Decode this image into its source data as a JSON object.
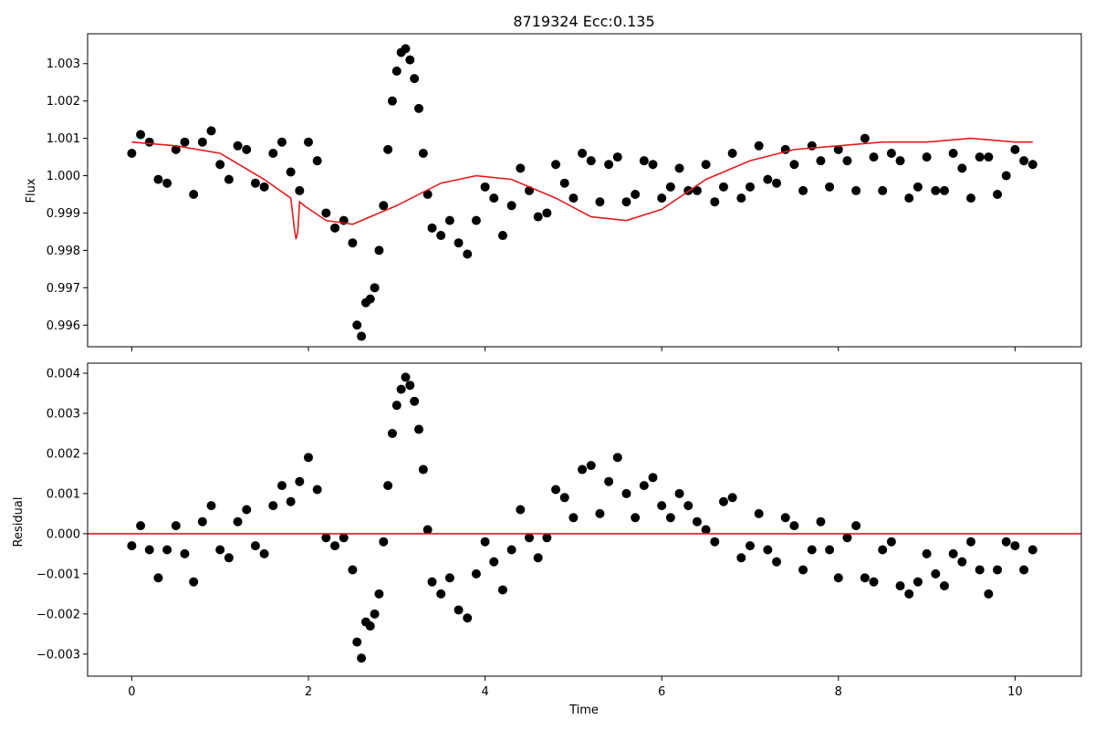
{
  "title": "8719324    Ecc:0.135",
  "colors": {
    "data": "#000000",
    "model": "#e41a1c",
    "axes": "#000000",
    "background": "#ffffff"
  },
  "chart_data": [
    {
      "type": "scatter",
      "panel": "top",
      "title": "8719324    Ecc:0.135",
      "xlabel": "",
      "ylabel": "Flux",
      "xlim": [
        -0.5,
        10.75
      ],
      "ylim": [
        0.99542,
        1.0038
      ],
      "xticks": [
        0,
        2,
        4,
        6,
        8,
        10
      ],
      "yticks": [
        0.996,
        0.997,
        0.998,
        0.999,
        1.0,
        1.001,
        1.002,
        1.003
      ],
      "ytick_labels": [
        "0.996",
        "0.997",
        "0.998",
        "0.999",
        "1.000",
        "1.001",
        "1.002",
        "1.003"
      ],
      "grid": false,
      "series": [
        {
          "kind": "scatter",
          "color": "#000000",
          "x": [
            0.0,
            0.1,
            0.2,
            0.3,
            0.4,
            0.5,
            0.6,
            0.7,
            0.8,
            0.9,
            1.0,
            1.1,
            1.2,
            1.3,
            1.4,
            1.5,
            1.6,
            1.7,
            1.8,
            1.9,
            2.0,
            2.1,
            2.2,
            2.3,
            2.4,
            2.5,
            2.55,
            2.6,
            2.65,
            2.7,
            2.75,
            2.8,
            2.85,
            2.9,
            2.95,
            3.0,
            3.05,
            3.1,
            3.15,
            3.2,
            3.25,
            3.3,
            3.35,
            3.4,
            3.5,
            3.6,
            3.7,
            3.8,
            3.9,
            4.0,
            4.1,
            4.2,
            4.3,
            4.4,
            4.5,
            4.6,
            4.7,
            4.8,
            4.9,
            5.0,
            5.1,
            5.2,
            5.3,
            5.4,
            5.5,
            5.6,
            5.7,
            5.8,
            5.9,
            6.0,
            6.1,
            6.2,
            6.3,
            6.4,
            6.5,
            6.6,
            6.7,
            6.8,
            6.9,
            7.0,
            7.1,
            7.2,
            7.3,
            7.4,
            7.5,
            7.6,
            7.7,
            7.8,
            7.9,
            8.0,
            8.1,
            8.2,
            8.3,
            8.4,
            8.5,
            8.6,
            8.7,
            8.8,
            8.9,
            9.0,
            9.1,
            9.2,
            9.3,
            9.4,
            9.5,
            9.6,
            9.7,
            9.8,
            9.9,
            10.0,
            10.1,
            10.2
          ],
          "y": [
            1.0006,
            1.0011,
            1.0009,
            0.9999,
            0.9998,
            1.0007,
            1.0009,
            0.9995,
            1.0009,
            1.0012,
            1.0003,
            0.9999,
            1.0008,
            1.0007,
            0.9998,
            0.9997,
            1.0006,
            1.0009,
            1.0001,
            0.9996,
            1.0009,
            1.0004,
            0.999,
            0.9986,
            0.9988,
            0.9982,
            0.996,
            0.9957,
            0.9966,
            0.9967,
            0.997,
            0.998,
            0.9992,
            1.0007,
            1.002,
            1.0028,
            1.0033,
            1.0034,
            1.0031,
            1.0026,
            1.0018,
            1.0006,
            0.9995,
            0.9986,
            0.9984,
            0.9988,
            0.9982,
            0.9979,
            0.9988,
            0.9997,
            0.9994,
            0.9984,
            0.9992,
            1.0002,
            0.9996,
            0.9989,
            0.999,
            1.0003,
            0.9998,
            0.9994,
            1.0006,
            1.0004,
            0.9993,
            1.0003,
            1.0005,
            0.9993,
            0.9995,
            1.0004,
            1.0003,
            0.9994,
            0.9997,
            1.0002,
            0.9996,
            0.9996,
            1.0003,
            0.9993,
            0.9997,
            1.0006,
            0.9994,
            0.9997,
            1.0008,
            0.9999,
            0.9998,
            1.0007,
            1.0003,
            0.9996,
            1.0008,
            1.0004,
            0.9997,
            1.0007,
            1.0004,
            0.9996,
            1.001,
            1.0005,
            0.9996,
            1.0006,
            1.0004,
            0.9994,
            0.9997,
            1.0005,
            0.9996,
            0.9996,
            1.0006,
            1.0002,
            0.9994,
            1.0005,
            1.0005,
            0.9995,
            1.0,
            1.0007,
            1.0004,
            1.0003
          ]
        },
        {
          "kind": "line",
          "color": "#e41a1c",
          "x": [
            0.0,
            0.5,
            1.0,
            1.5,
            1.8,
            1.84,
            1.86,
            1.88,
            1.9,
            1.95,
            2.2,
            2.5,
            3.0,
            3.5,
            3.9,
            4.3,
            4.8,
            5.2,
            5.6,
            6.0,
            6.5,
            7.0,
            7.5,
            8.0,
            8.5,
            9.0,
            9.5,
            10.0,
            10.2
          ],
          "y": [
            1.0009,
            1.0008,
            1.0006,
            0.9999,
            0.9994,
            0.9986,
            0.9983,
            0.9985,
            0.9993,
            0.9992,
            0.9988,
            0.9987,
            0.9992,
            0.9998,
            1.0,
            0.9999,
            0.9994,
            0.9989,
            0.9988,
            0.9991,
            0.9999,
            1.0004,
            1.0007,
            1.0008,
            1.0009,
            1.0009,
            1.001,
            1.0009,
            1.0009
          ]
        }
      ]
    },
    {
      "type": "scatter",
      "panel": "bottom",
      "title": "",
      "xlabel": "Time",
      "ylabel": "Residual",
      "xlim": [
        -0.5,
        10.75
      ],
      "ylim": [
        -0.00355,
        0.00425
      ],
      "xticks": [
        0,
        2,
        4,
        6,
        8,
        10
      ],
      "xtick_labels": [
        "0",
        "2",
        "4",
        "6",
        "8",
        "10"
      ],
      "yticks": [
        -0.003,
        -0.002,
        -0.001,
        0.0,
        0.001,
        0.002,
        0.003,
        0.004
      ],
      "ytick_labels": [
        "−0.003",
        "−0.002",
        "−0.001",
        "0.000",
        "0.001",
        "0.002",
        "0.003",
        "0.004"
      ],
      "grid": false,
      "series": [
        {
          "kind": "scatter",
          "color": "#000000",
          "x": [
            0.0,
            0.1,
            0.2,
            0.3,
            0.4,
            0.5,
            0.6,
            0.7,
            0.8,
            0.9,
            1.0,
            1.1,
            1.2,
            1.3,
            1.4,
            1.5,
            1.6,
            1.7,
            1.8,
            1.9,
            2.0,
            2.1,
            2.2,
            2.3,
            2.4,
            2.5,
            2.55,
            2.6,
            2.65,
            2.7,
            2.75,
            2.8,
            2.85,
            2.9,
            2.95,
            3.0,
            3.05,
            3.1,
            3.15,
            3.2,
            3.25,
            3.3,
            3.35,
            3.4,
            3.5,
            3.6,
            3.7,
            3.8,
            3.9,
            4.0,
            4.1,
            4.2,
            4.3,
            4.4,
            4.5,
            4.6,
            4.7,
            4.8,
            4.9,
            5.0,
            5.1,
            5.2,
            5.3,
            5.4,
            5.5,
            5.6,
            5.7,
            5.8,
            5.9,
            6.0,
            6.1,
            6.2,
            6.3,
            6.4,
            6.5,
            6.6,
            6.7,
            6.8,
            6.9,
            7.0,
            7.1,
            7.2,
            7.3,
            7.4,
            7.5,
            7.6,
            7.7,
            7.8,
            7.9,
            8.0,
            8.1,
            8.2,
            8.3,
            8.4,
            8.5,
            8.6,
            8.7,
            8.8,
            8.9,
            9.0,
            9.1,
            9.2,
            9.3,
            9.4,
            9.5,
            9.6,
            9.7,
            9.8,
            9.9,
            10.0,
            10.1,
            10.2
          ],
          "y": [
            -0.0003,
            0.0002,
            -0.0004,
            -0.0011,
            -0.0004,
            0.0002,
            -0.0005,
            -0.0012,
            0.0003,
            0.0007,
            -0.0004,
            -0.0006,
            0.0003,
            0.0006,
            -0.0003,
            -0.0005,
            0.0007,
            0.0012,
            0.0008,
            0.0013,
            0.0019,
            0.0011,
            -0.0001,
            -0.0003,
            -0.0001,
            -0.0009,
            -0.0027,
            -0.0031,
            -0.0022,
            -0.0023,
            -0.002,
            -0.0015,
            -0.0002,
            0.0012,
            0.0025,
            0.0032,
            0.0036,
            0.0039,
            0.0037,
            0.0033,
            0.0026,
            0.0016,
            0.0001,
            -0.0012,
            -0.0015,
            -0.0011,
            -0.0019,
            -0.0021,
            -0.001,
            -0.0002,
            -0.0007,
            -0.0014,
            -0.0004,
            0.0006,
            -0.0001,
            -0.0006,
            -0.0001,
            0.0011,
            0.0009,
            0.0004,
            0.0016,
            0.0017,
            0.0005,
            0.0013,
            0.0019,
            0.001,
            0.0004,
            0.0012,
            0.0014,
            0.0007,
            0.0004,
            0.001,
            0.0007,
            0.0003,
            0.0001,
            -0.0002,
            0.0008,
            0.0009,
            -0.0006,
            -0.0003,
            0.0005,
            -0.0004,
            -0.0007,
            0.0004,
            0.0002,
            -0.0009,
            -0.0004,
            0.0003,
            -0.0004,
            -0.0011,
            -0.0001,
            0.0002,
            -0.0011,
            -0.0012,
            -0.0004,
            -0.0002,
            -0.0013,
            -0.0015,
            -0.0012,
            -0.0005,
            -0.001,
            -0.0013,
            -0.0005,
            -0.0007,
            -0.0002,
            -0.0009,
            -0.0015,
            -0.0009,
            -0.0002,
            -0.0003,
            -0.0009,
            -0.0004
          ]
        },
        {
          "kind": "hline",
          "color": "#e41a1c",
          "y": 0.0
        }
      ]
    }
  ]
}
